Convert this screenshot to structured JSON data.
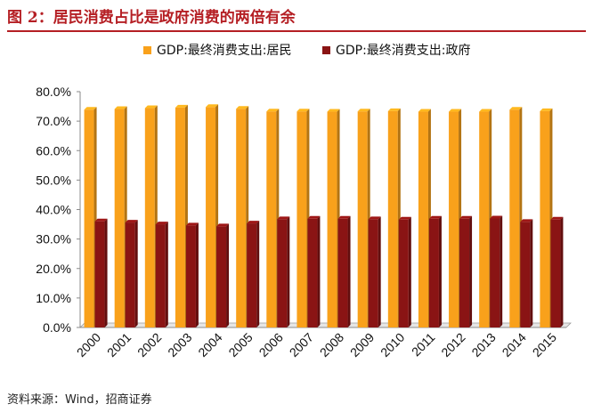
{
  "figure": {
    "title": "图 2：居民消费占比是政府消费的两倍有余",
    "source": "资料来源：Wind，招商证券"
  },
  "colors": {
    "series_a": "#f9a11b",
    "series_b": "#8a1414",
    "title": "#b51f24"
  },
  "chart_data": {
    "type": "bar",
    "title": "",
    "xlabel": "",
    "ylabel": "",
    "ylim": [
      0,
      80
    ],
    "yticks": [
      0,
      10,
      20,
      30,
      40,
      50,
      60,
      70,
      80
    ],
    "ytick_labels": [
      "0.0%",
      "10.0%",
      "20.0%",
      "30.0%",
      "40.0%",
      "50.0%",
      "60.0%",
      "70.0%",
      "80.0%"
    ],
    "legend_position": "top",
    "grid": false,
    "categories": [
      "2000",
      "2001",
      "2002",
      "2003",
      "2004",
      "2005",
      "2006",
      "2007",
      "2008",
      "2009",
      "2010",
      "2011",
      "2012",
      "2013",
      "2014",
      "2015"
    ],
    "series": [
      {
        "name": "GDP:最终消费支出:居民",
        "values": [
          73.9,
          74.1,
          74.4,
          74.6,
          74.8,
          74.2,
          73.3,
          73.3,
          73.2,
          73.3,
          73.4,
          73.2,
          73.2,
          73.2,
          73.9,
          73.4
        ]
      },
      {
        "name": "GDP:最终消费支出:政府",
        "values": [
          36.0,
          35.6,
          35.0,
          34.6,
          34.3,
          35.3,
          36.7,
          36.9,
          36.9,
          36.7,
          36.6,
          36.9,
          36.9,
          37.0,
          35.8,
          36.6
        ]
      }
    ]
  }
}
